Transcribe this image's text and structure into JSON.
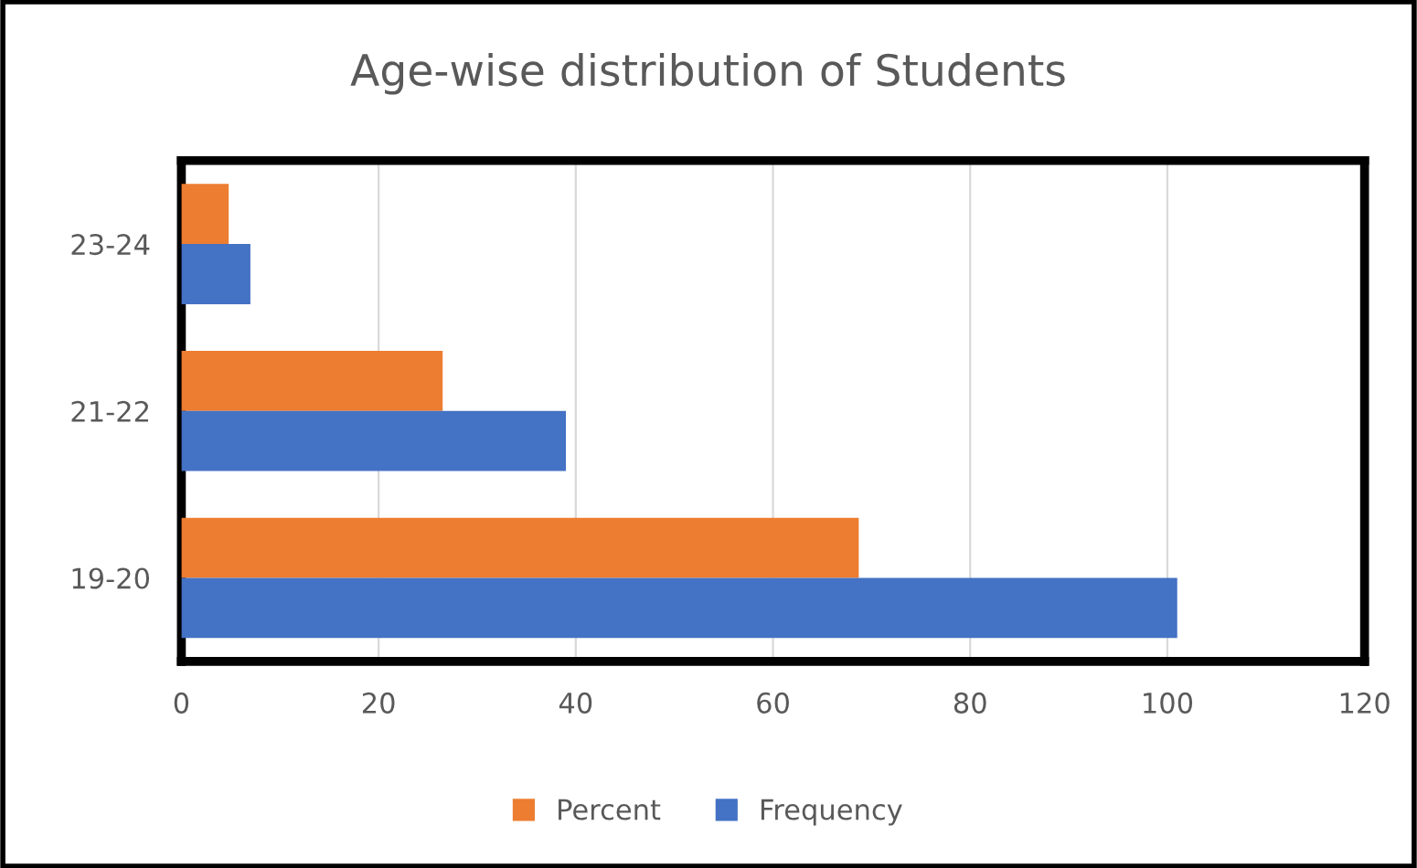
{
  "chart_data": {
    "type": "bar",
    "orientation": "horizontal",
    "title": "Age-wise distribution of Students",
    "categories": [
      "23-24",
      "21-22",
      "19-20"
    ],
    "series": [
      {
        "name": "Percent",
        "color": "#ed7d31",
        "values": [
          4.8,
          26.5,
          68.7
        ]
      },
      {
        "name": "Frequency",
        "color": "#4472c4",
        "values": [
          7,
          39,
          101
        ]
      }
    ],
    "xlim": [
      0,
      120
    ],
    "xticks": [
      0,
      20,
      40,
      60,
      80,
      100,
      120
    ],
    "grid": "x",
    "legend": "bottom"
  }
}
